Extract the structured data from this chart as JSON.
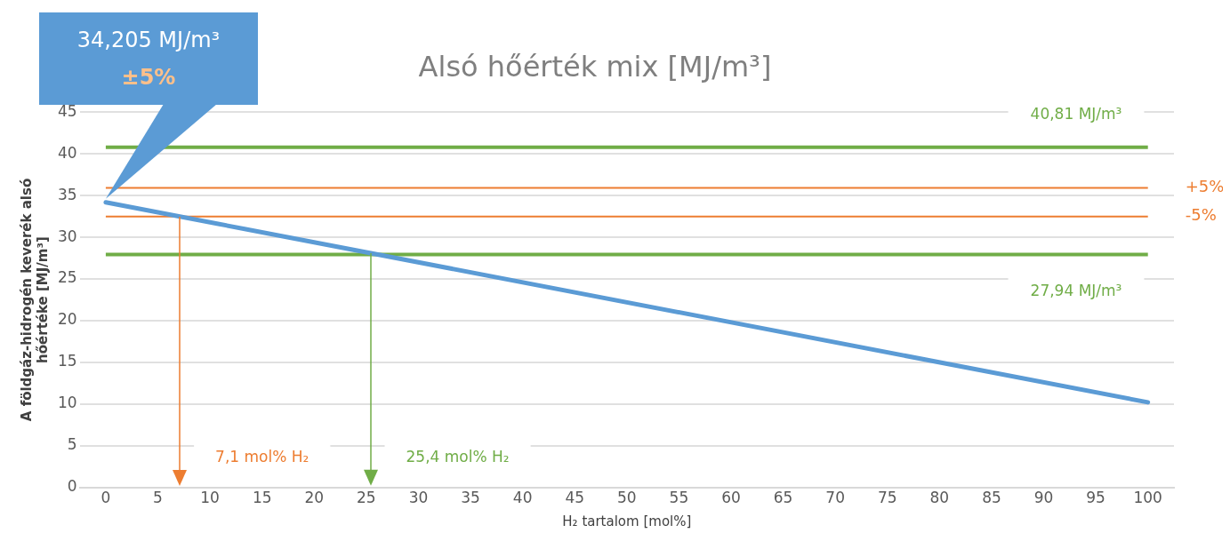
{
  "chart_data": {
    "type": "line",
    "title": "Alsó hőérték mix [MJ/m³]",
    "xlabel": "H₂ tartalom [mol%]",
    "ylabel": "A földgáz-hidrogén keverék alsó hőértéke [MJ/m³]",
    "series": [
      {
        "color": "#5b9bd5",
        "x": [
          0,
          100
        ],
        "values": [
          34.2,
          10.2
        ]
      }
    ],
    "xlim": [
      -2.5,
      102.5
    ],
    "xticks": [
      0,
      5,
      10,
      15,
      20,
      25,
      30,
      35,
      40,
      45,
      50,
      55,
      60,
      65,
      70,
      75,
      80,
      85,
      90,
      95,
      100
    ],
    "ylim": [
      0,
      45
    ],
    "yticks": [
      0,
      5,
      10,
      15,
      20,
      25,
      30,
      35,
      40,
      45
    ],
    "grid": "y",
    "legend": false,
    "marker": "none",
    "line_style": "solid",
    "ref_lines": [
      {
        "axis": "y",
        "value": 40.81,
        "label": "40,81 MJ/m³",
        "color": "#70ad47"
      },
      {
        "axis": "y",
        "value": 35.92,
        "color": "#ed7d31"
      },
      {
        "axis": "y",
        "value": 32.49,
        "color": "#ed7d31"
      },
      {
        "axis": "y",
        "value": 27.94,
        "label": "27,94 MJ/m³",
        "color": "#70ad47"
      },
      {
        "axis": "x",
        "value": 7.1,
        "label": "7,1 mol% H₂",
        "color": "#ed7d31"
      },
      {
        "axis": "x",
        "value": 25.4,
        "label": "25,4 mol% H₂",
        "color": "#70ad47"
      }
    ],
    "annotations": [
      "34,205 MJ/m³",
      "±5%",
      {
        "text": "+5%",
        "x": 100,
        "y": 35.92
      },
      {
        "text": "-5%",
        "x": 100,
        "y": 32.49
      }
    ]
  }
}
